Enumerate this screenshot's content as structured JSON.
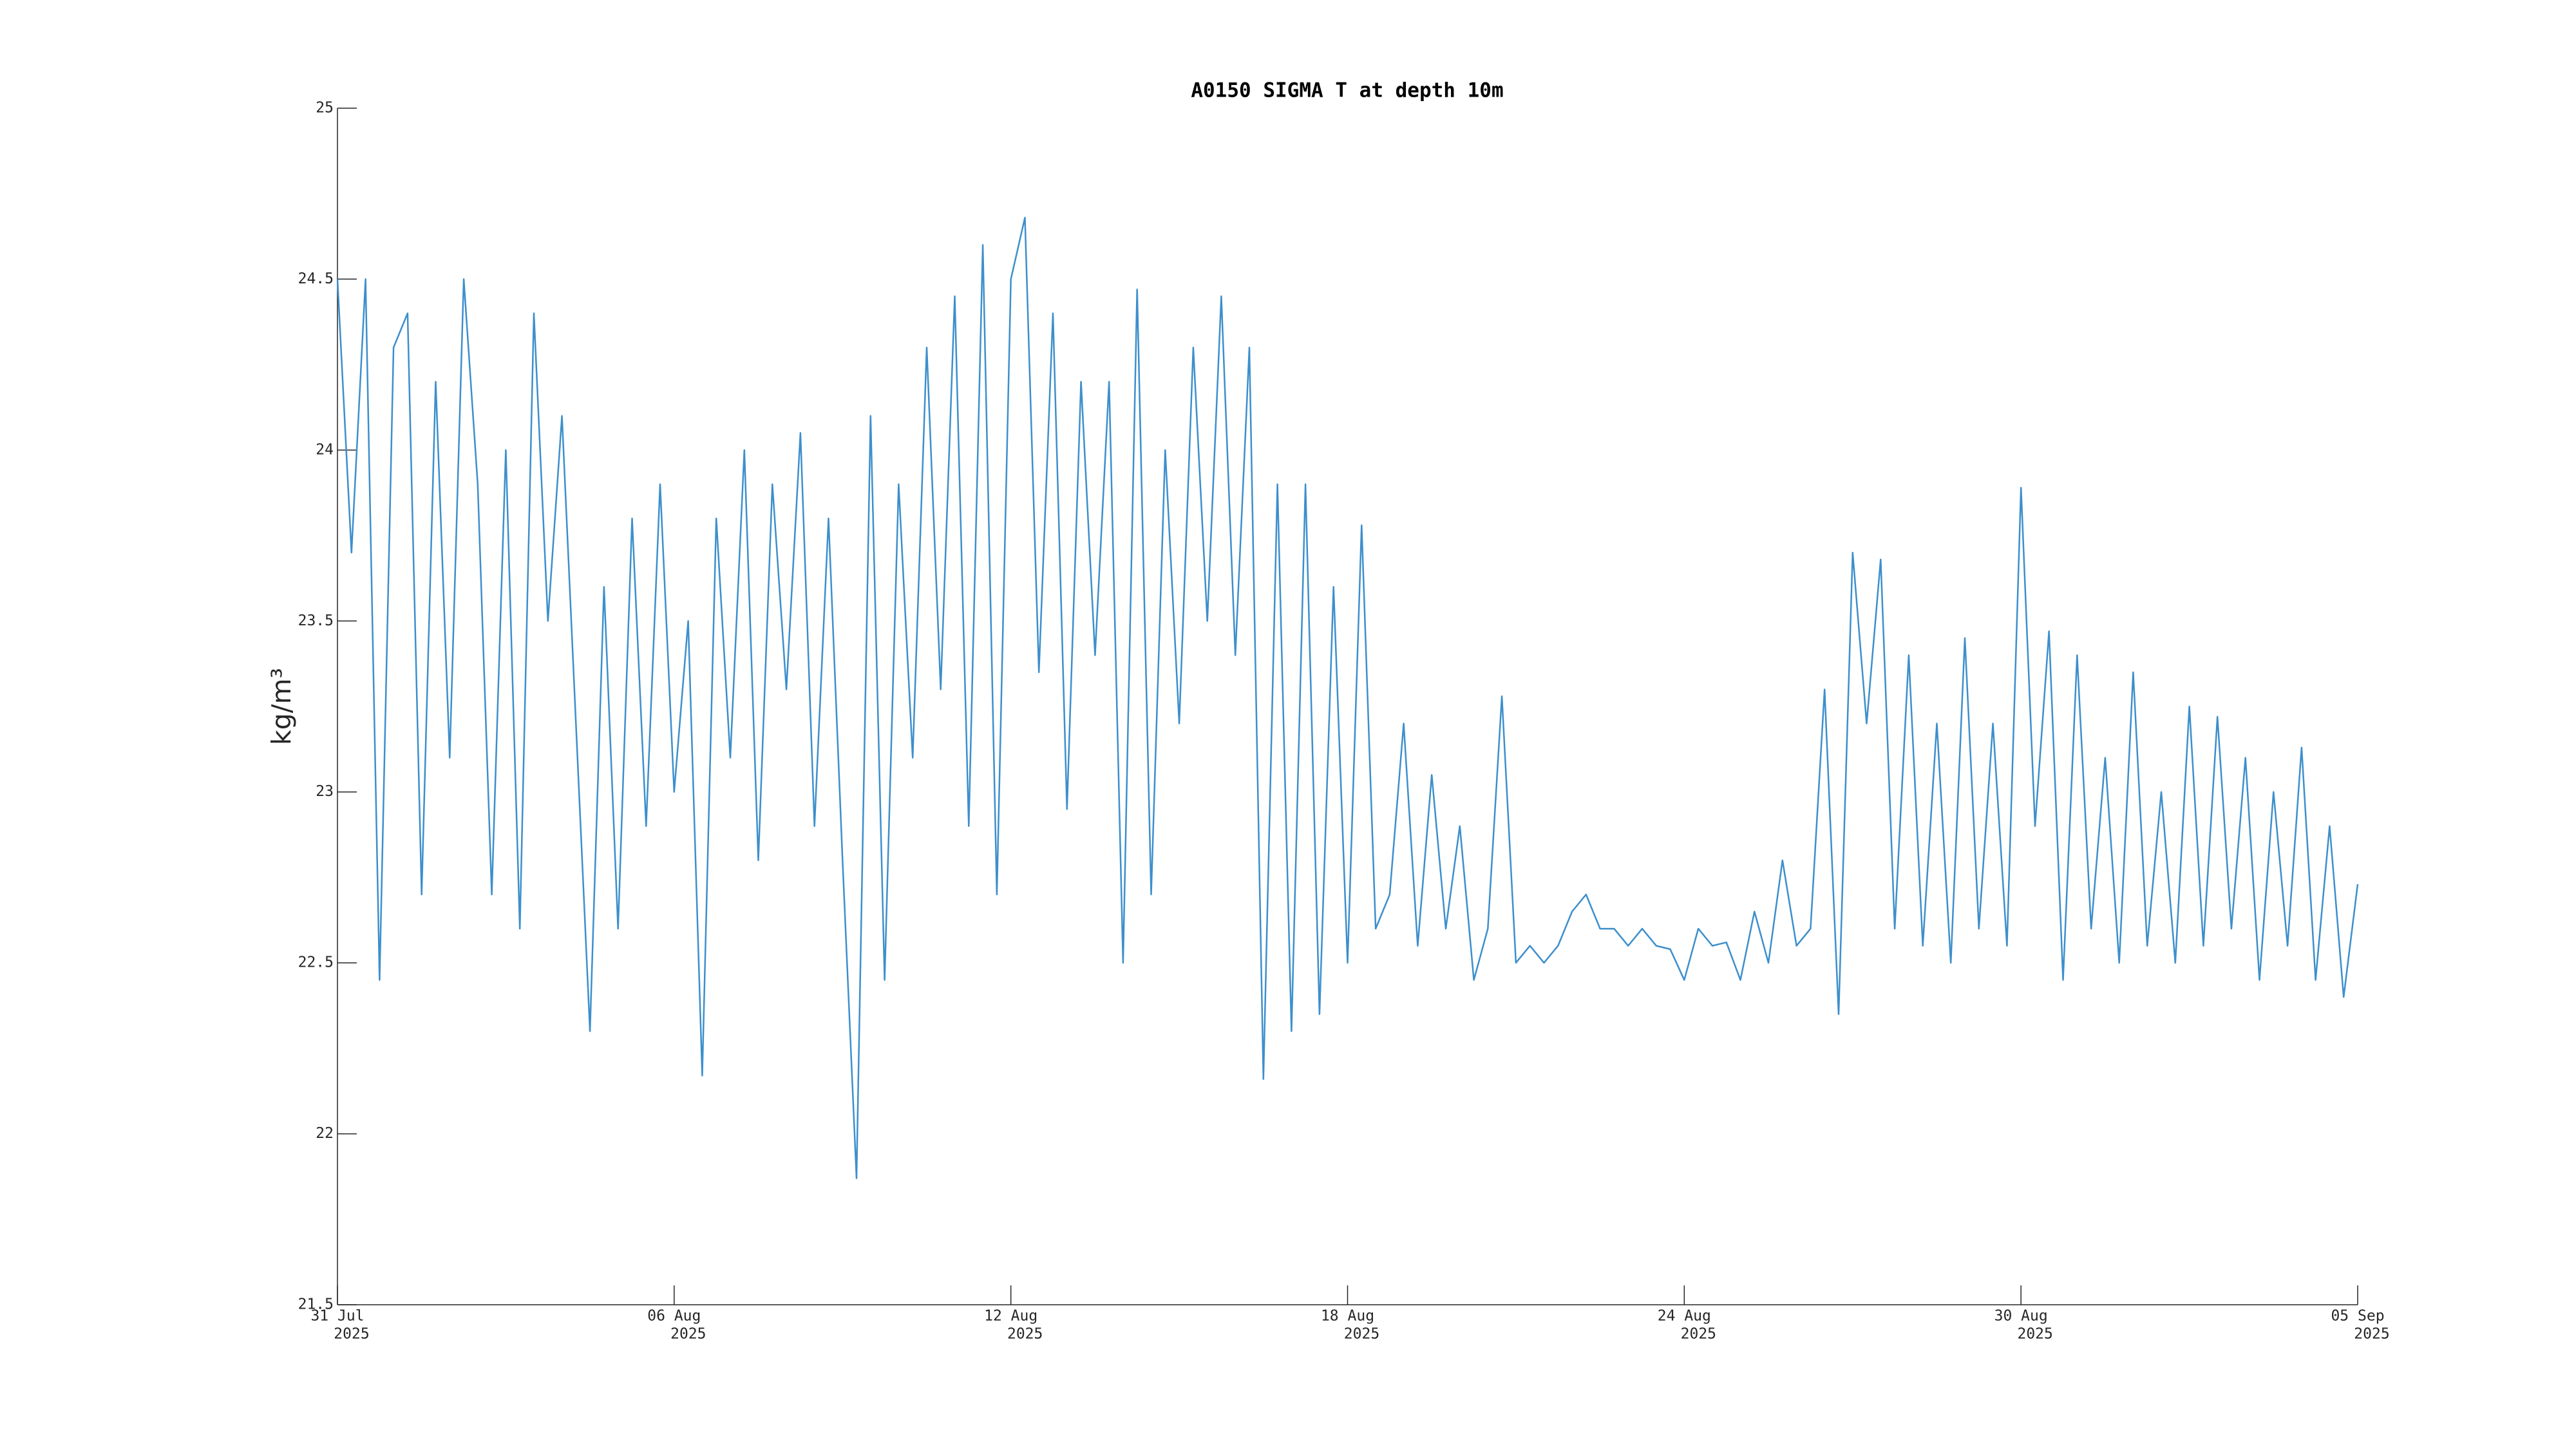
{
  "chart_data": {
    "type": "line",
    "title": "A0150 SIGMA T at depth 10m",
    "ylabel": "kg/m³",
    "color": "#3d8fcc",
    "x": [
      0,
      0.25,
      0.5,
      0.75,
      1,
      1.25,
      1.5,
      1.75,
      2,
      2.25,
      2.5,
      2.75,
      3,
      3.25,
      3.5,
      3.75,
      4,
      4.25,
      4.5,
      4.75,
      5,
      5.25,
      5.5,
      5.75,
      6,
      6.25,
      6.5,
      6.75,
      7,
      7.25,
      7.5,
      7.75,
      8,
      8.25,
      8.5,
      8.75,
      9,
      9.25,
      9.5,
      9.75,
      10,
      10.25,
      10.5,
      10.75,
      11,
      11.25,
      11.5,
      11.75,
      12,
      12.25,
      12.5,
      12.75,
      13,
      13.25,
      13.5,
      13.75,
      14,
      14.25,
      14.5,
      14.75,
      15,
      15.25,
      15.5,
      15.75,
      16,
      16.25,
      16.5,
      16.75,
      17,
      17.25,
      17.5,
      17.75,
      18,
      18.25,
      18.5,
      18.75,
      19,
      19.25,
      19.5,
      19.75,
      20,
      20.25,
      20.5,
      20.75,
      21,
      21.25,
      21.5,
      21.75,
      22,
      22.25,
      22.5,
      22.75,
      23,
      23.25,
      23.5,
      23.75,
      24,
      24.25,
      24.5,
      24.75,
      25,
      25.25,
      25.5,
      25.75,
      26,
      26.25,
      26.5,
      26.75,
      27,
      27.25,
      27.5,
      27.75,
      28,
      28.25,
      28.5,
      28.75,
      29,
      29.25,
      29.5,
      29.75,
      30,
      30.25,
      30.5,
      30.75,
      31,
      31.25,
      31.5,
      31.75,
      32,
      32.25,
      32.5,
      32.75,
      33,
      33.25,
      33.5,
      33.75,
      34,
      34.25,
      34.5,
      34.75,
      35,
      35.25,
      35.5,
      35.75,
      36
    ],
    "values": [
      24.5,
      23.7,
      24.5,
      22.45,
      24.3,
      24.4,
      22.7,
      24.2,
      23.1,
      24.5,
      23.9,
      22.7,
      24.0,
      22.6,
      24.4,
      23.5,
      24.1,
      23.2,
      22.3,
      23.6,
      22.6,
      23.8,
      22.9,
      23.9,
      23.0,
      23.5,
      22.17,
      23.8,
      23.1,
      24.0,
      22.8,
      23.9,
      23.3,
      24.05,
      22.9,
      23.8,
      22.8,
      21.87,
      24.1,
      22.45,
      23.9,
      23.1,
      24.3,
      23.3,
      24.45,
      22.9,
      24.6,
      22.7,
      24.5,
      24.68,
      23.35,
      24.4,
      22.95,
      24.2,
      23.4,
      24.2,
      22.5,
      24.47,
      22.7,
      24.0,
      23.2,
      24.3,
      23.5,
      24.45,
      23.4,
      24.3,
      22.16,
      23.9,
      22.3,
      23.9,
      22.35,
      23.6,
      22.5,
      23.78,
      22.6,
      22.7,
      23.2,
      22.55,
      23.05,
      22.6,
      22.9,
      22.45,
      22.6,
      23.28,
      22.5,
      22.55,
      22.5,
      22.55,
      22.65,
      22.7,
      22.6,
      22.6,
      22.55,
      22.6,
      22.55,
      22.54,
      22.45,
      22.6,
      22.55,
      22.56,
      22.45,
      22.65,
      22.5,
      22.8,
      22.55,
      22.6,
      23.3,
      22.35,
      23.7,
      23.2,
      23.68,
      22.6,
      23.4,
      22.55,
      23.2,
      22.5,
      23.45,
      22.6,
      23.2,
      22.55,
      23.89,
      22.9,
      23.47,
      22.45,
      23.4,
      22.6,
      23.1,
      22.5,
      23.35,
      22.55,
      23.0,
      22.5,
      23.25,
      22.55,
      23.22,
      22.6,
      23.1,
      22.45,
      23.0,
      22.55,
      23.13,
      22.45,
      22.9,
      22.4,
      22.73
    ],
    "xlim": [
      0,
      36
    ],
    "xticks": [
      {
        "value": 0,
        "label": "31 Jul",
        "sublabel": "2025"
      },
      {
        "value": 6,
        "label": "06 Aug",
        "sublabel": "2025"
      },
      {
        "value": 12,
        "label": "12 Aug",
        "sublabel": "2025"
      },
      {
        "value": 18,
        "label": "18 Aug",
        "sublabel": "2025"
      },
      {
        "value": 24,
        "label": "24 Aug",
        "sublabel": "2025"
      },
      {
        "value": 30,
        "label": "30 Aug",
        "sublabel": "2025"
      },
      {
        "value": 36,
        "label": "05 Sep",
        "sublabel": "2025"
      }
    ],
    "ylim": [
      21.5,
      25
    ],
    "yticks": [
      21.5,
      22,
      22.5,
      23,
      23.5,
      24,
      24.5,
      25
    ]
  }
}
